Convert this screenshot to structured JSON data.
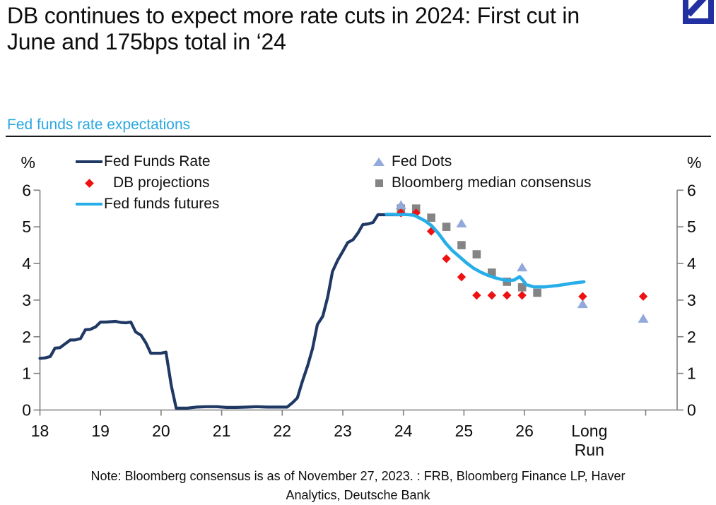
{
  "header": {
    "title": "DB continues to expect more rate cuts in 2024: First cut in June and 175bps total in ‘24",
    "section_label": "Fed funds rate expectations"
  },
  "logo": {
    "name": "deutsche-bank-logo",
    "color": "#2230A2"
  },
  "note": {
    "line1": "Note: Bloomberg consensus is as of November 27, 2023. : FRB, Bloomberg Finance LP, Haver",
    "line2": "Analytics, Deutsche Bank"
  },
  "chart_data": {
    "type": "line",
    "title": "Fed funds rate expectations",
    "unit_label": "%",
    "ylim": [
      0,
      6
    ],
    "y_ticks": [
      0,
      1,
      2,
      3,
      4,
      5,
      6
    ],
    "x_tick_years": [
      2018,
      2019,
      2020,
      2021,
      2022,
      2023,
      2024,
      2025,
      2026,
      2027,
      2028
    ],
    "x_tick_labels": [
      "18",
      "19",
      "20",
      "21",
      "22",
      "23",
      "24",
      "25",
      "26",
      "Long Run",
      ""
    ],
    "long_run_label": [
      "Long",
      "Run"
    ],
    "grid": false,
    "legend_position": "top-inside",
    "legend": {
      "col1": [
        {
          "label": "Fed Funds Rate",
          "swatch": "line"
        },
        {
          "label": "DB projections",
          "swatch": "diamond"
        },
        {
          "label": "Fed funds futures",
          "swatch": "line"
        }
      ],
      "col2": [
        {
          "label": "Fed Dots",
          "swatch": "triangle"
        },
        {
          "label": "Bloomberg median consensus",
          "swatch": "square"
        }
      ]
    },
    "series": [
      {
        "name": "Bloomberg median consensus",
        "type": "scatter",
        "marker": "square",
        "color": "#848484",
        "points": [
          [
            2023.96,
            5.5
          ],
          [
            2024.21,
            5.5
          ],
          [
            2024.46,
            5.25
          ],
          [
            2024.71,
            5.0
          ],
          [
            2024.96,
            4.5
          ],
          [
            2025.21,
            4.25
          ],
          [
            2025.46,
            3.75
          ],
          [
            2025.71,
            3.5
          ],
          [
            2025.96,
            3.35
          ],
          [
            2026.21,
            3.2
          ]
        ]
      },
      {
        "name": "Fed Dots",
        "type": "scatter",
        "marker": "triangle",
        "color": "#92A9DC",
        "points": [
          [
            2023.96,
            5.6
          ],
          [
            2024.96,
            5.1
          ],
          [
            2025.96,
            3.9
          ],
          [
            2026.96,
            2.9
          ],
          [
            "LR",
            2.5
          ]
        ]
      },
      {
        "name": "DB projections",
        "type": "scatter",
        "marker": "diamond",
        "color": "#EE1111",
        "points": [
          [
            2023.96,
            5.38
          ],
          [
            2024.21,
            5.38
          ],
          [
            2024.46,
            4.88
          ],
          [
            2024.71,
            4.13
          ],
          [
            2024.96,
            3.63
          ],
          [
            2025.21,
            3.13
          ],
          [
            2025.46,
            3.13
          ],
          [
            2025.71,
            3.13
          ],
          [
            2025.96,
            3.13
          ],
          [
            2026.96,
            3.1
          ],
          [
            "LR",
            3.1
          ]
        ]
      },
      {
        "name": "Fed Funds Rate",
        "type": "line",
        "color": "#1F3864",
        "width": 4.2,
        "points": [
          [
            2018.0,
            1.41
          ],
          [
            2018.08,
            1.42
          ],
          [
            2018.17,
            1.46
          ],
          [
            2018.25,
            1.69
          ],
          [
            2018.33,
            1.7
          ],
          [
            2018.42,
            1.81
          ],
          [
            2018.5,
            1.91
          ],
          [
            2018.58,
            1.91
          ],
          [
            2018.67,
            1.95
          ],
          [
            2018.75,
            2.19
          ],
          [
            2018.83,
            2.2
          ],
          [
            2018.92,
            2.27
          ],
          [
            2019.0,
            2.4
          ],
          [
            2019.08,
            2.4
          ],
          [
            2019.17,
            2.41
          ],
          [
            2019.25,
            2.42
          ],
          [
            2019.33,
            2.39
          ],
          [
            2019.42,
            2.38
          ],
          [
            2019.5,
            2.4
          ],
          [
            2019.58,
            2.13
          ],
          [
            2019.67,
            2.04
          ],
          [
            2019.75,
            1.83
          ],
          [
            2019.83,
            1.55
          ],
          [
            2019.92,
            1.55
          ],
          [
            2020.0,
            1.55
          ],
          [
            2020.08,
            1.58
          ],
          [
            2020.17,
            0.65
          ],
          [
            2020.25,
            0.05
          ],
          [
            2020.42,
            0.05
          ],
          [
            2020.58,
            0.08
          ],
          [
            2020.75,
            0.09
          ],
          [
            2020.92,
            0.09
          ],
          [
            2021.08,
            0.07
          ],
          [
            2021.25,
            0.07
          ],
          [
            2021.42,
            0.08
          ],
          [
            2021.58,
            0.09
          ],
          [
            2021.75,
            0.08
          ],
          [
            2021.92,
            0.08
          ],
          [
            2022.08,
            0.08
          ],
          [
            2022.17,
            0.2
          ],
          [
            2022.25,
            0.33
          ],
          [
            2022.33,
            0.77
          ],
          [
            2022.42,
            1.21
          ],
          [
            2022.5,
            1.68
          ],
          [
            2022.58,
            2.33
          ],
          [
            2022.67,
            2.56
          ],
          [
            2022.75,
            3.08
          ],
          [
            2022.83,
            3.78
          ],
          [
            2022.92,
            4.1
          ],
          [
            2023.0,
            4.33
          ],
          [
            2023.08,
            4.57
          ],
          [
            2023.17,
            4.65
          ],
          [
            2023.25,
            4.83
          ],
          [
            2023.33,
            5.06
          ],
          [
            2023.42,
            5.08
          ],
          [
            2023.5,
            5.12
          ],
          [
            2023.58,
            5.33
          ],
          [
            2023.67,
            5.33
          ],
          [
            2023.75,
            5.33
          ],
          [
            2023.83,
            5.33
          ],
          [
            2023.92,
            5.33
          ]
        ]
      },
      {
        "name": "Fed funds futures",
        "type": "line",
        "color": "#27AEE8",
        "width": 4.6,
        "points": [
          [
            2023.72,
            5.34
          ],
          [
            2023.83,
            5.34
          ],
          [
            2023.92,
            5.33
          ],
          [
            2024.0,
            5.34
          ],
          [
            2024.08,
            5.33
          ],
          [
            2024.17,
            5.32
          ],
          [
            2024.23,
            5.27
          ],
          [
            2024.35,
            5.17
          ],
          [
            2024.46,
            5.04
          ],
          [
            2024.58,
            4.82
          ],
          [
            2024.7,
            4.55
          ],
          [
            2024.81,
            4.35
          ],
          [
            2024.93,
            4.18
          ],
          [
            2025.04,
            4.02
          ],
          [
            2025.16,
            3.87
          ],
          [
            2025.28,
            3.76
          ],
          [
            2025.39,
            3.68
          ],
          [
            2025.51,
            3.61
          ],
          [
            2025.63,
            3.56
          ],
          [
            2025.74,
            3.53
          ],
          [
            2025.83,
            3.55
          ],
          [
            2025.92,
            3.64
          ],
          [
            2025.97,
            3.55
          ],
          [
            2026.03,
            3.42
          ],
          [
            2026.15,
            3.36
          ],
          [
            2026.33,
            3.36
          ],
          [
            2026.56,
            3.4
          ],
          [
            2026.79,
            3.46
          ],
          [
            2026.98,
            3.5
          ]
        ]
      }
    ]
  }
}
